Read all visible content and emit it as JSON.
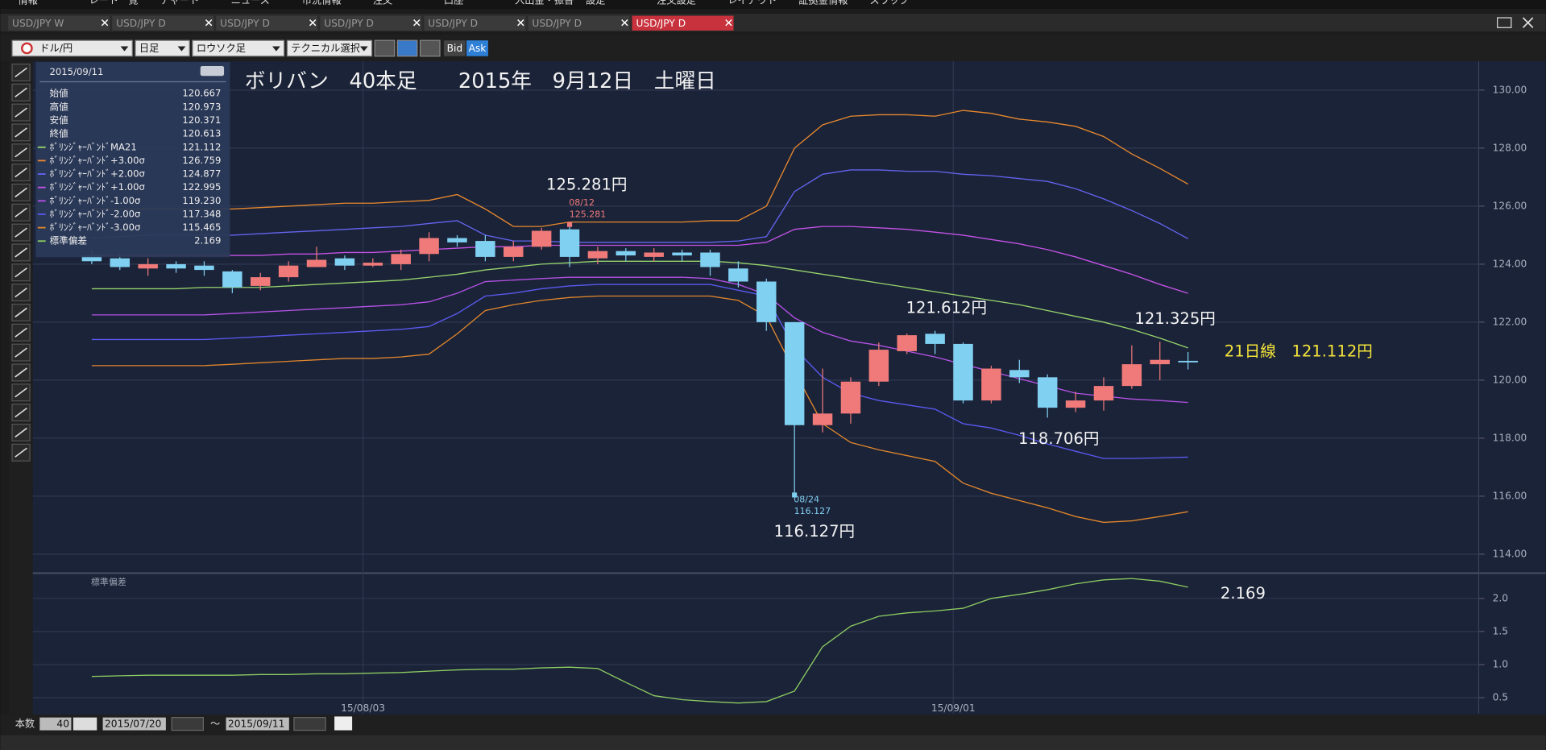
{
  "menu": [
    "情報",
    "レート一覧",
    "チャート",
    "ニュース",
    "市況情報",
    "注文",
    "口座",
    "入出金・振替",
    "設定",
    "注文設定",
    "レイアウト",
    "証拠金情報",
    "スワップ"
  ],
  "tabs": [
    "USD/JPY W",
    "USD/JPY D",
    "USD/JPY D",
    "USD/JPY D",
    "USD/JPY D",
    "USD/JPY D",
    "USD/JPY D"
  ],
  "toolbar": {
    "pair": "ドル/円",
    "period": "日足",
    "chart_kind": "ロウソク足",
    "technical": "テクニカル選択",
    "bid": "Bid",
    "ask": "Ask"
  },
  "info_panel": {
    "date": "2015/09/11",
    "rows": [
      {
        "label": "始値",
        "value": "120.667"
      },
      {
        "label": "高値",
        "value": "120.973"
      },
      {
        "label": "安値",
        "value": "120.371"
      },
      {
        "label": "終値",
        "value": "120.613"
      },
      {
        "label": "ﾎﾞﾘﾝｼﾞｬｰﾊﾞﾝﾄﾞMA21",
        "value": "121.112"
      },
      {
        "label": "ﾎﾞﾘﾝｼﾞｬｰﾊﾞﾝﾄﾞ+3.00σ",
        "value": "126.759"
      },
      {
        "label": "ﾎﾞﾘﾝｼﾞｬｰﾊﾞﾝﾄﾞ+2.00σ",
        "value": "124.877"
      },
      {
        "label": "ﾎﾞﾘﾝｼﾞｬｰﾊﾞﾝﾄﾞ+1.00σ",
        "value": "122.995"
      },
      {
        "label": "ﾎﾞﾘﾝｼﾞｬｰﾊﾞﾝﾄﾞ-1.00σ",
        "value": "119.230"
      },
      {
        "label": "ﾎﾞﾘﾝｼﾞｬｰﾊﾞﾝﾄﾞ-2.00σ",
        "value": "117.348"
      },
      {
        "label": "ﾎﾞﾘﾝｼﾞｬｰﾊﾞﾝﾄﾞ-3.00σ",
        "value": "115.465"
      },
      {
        "label": "標準偏差",
        "value": "2.169"
      }
    ]
  },
  "footer": {
    "count_label": "本数",
    "count": 40,
    "from": "2015/07/20",
    "tilde": "～",
    "to": "2015/09/11"
  },
  "chart_data": [
    {
      "type": "candlestick",
      "title": "ボリバン　40本足　　2015年　9月12日　土曜日",
      "categories": [
        null,
        null,
        null,
        null,
        null,
        null,
        null,
        null,
        null,
        null,
        "15/08/03",
        null,
        null,
        null,
        null,
        null,
        null,
        null,
        null,
        null,
        null,
        null,
        null,
        null,
        null,
        null,
        null,
        null,
        null,
        null,
        null,
        "15/09/01",
        null,
        null,
        null,
        null,
        null,
        null,
        null,
        null
      ],
      "open": [
        124.3,
        124.2,
        123.85,
        124.0,
        123.95,
        123.75,
        123.25,
        123.55,
        123.9,
        124.2,
        123.95,
        124.0,
        124.35,
        124.9,
        124.8,
        124.25,
        124.6,
        125.2,
        124.2,
        124.45,
        124.25,
        124.4,
        124.4,
        123.85,
        123.4,
        122.0,
        118.45,
        118.85,
        119.95,
        121.0,
        121.6,
        121.25,
        119.3,
        120.35,
        120.1,
        119.05,
        119.3,
        119.8,
        120.55,
        120.667
      ],
      "high": [
        124.5,
        124.4,
        124.2,
        124.1,
        124.1,
        123.8,
        123.7,
        124.1,
        124.6,
        124.3,
        124.2,
        124.5,
        125.1,
        125.0,
        125.0,
        124.8,
        125.25,
        125.281,
        124.6,
        124.55,
        124.55,
        124.5,
        124.5,
        124.1,
        123.5,
        122.0,
        120.4,
        120.1,
        121.3,
        121.612,
        121.7,
        121.3,
        120.5,
        120.7,
        120.2,
        119.6,
        120.1,
        121.2,
        121.325,
        120.973
      ],
      "low": [
        124.0,
        123.8,
        123.6,
        123.7,
        123.6,
        123.0,
        123.1,
        123.4,
        123.9,
        123.8,
        123.9,
        123.8,
        124.1,
        124.6,
        124.1,
        124.1,
        124.5,
        123.9,
        124.0,
        124.1,
        124.1,
        124.1,
        123.6,
        123.2,
        121.7,
        116.127,
        118.2,
        118.5,
        119.8,
        120.9,
        120.9,
        119.2,
        119.2,
        119.9,
        118.706,
        118.9,
        118.95,
        119.7,
        120.0,
        120.371
      ],
      "close": [
        124.1,
        123.9,
        124.0,
        123.85,
        123.8,
        123.2,
        123.55,
        123.95,
        124.15,
        123.95,
        124.05,
        124.35,
        124.9,
        124.75,
        124.25,
        124.6,
        125.15,
        124.25,
        124.45,
        124.3,
        124.4,
        124.3,
        123.9,
        123.4,
        122.0,
        118.45,
        118.85,
        119.95,
        121.05,
        121.55,
        121.25,
        119.3,
        120.4,
        120.1,
        119.05,
        119.3,
        119.8,
        120.55,
        120.7,
        120.613
      ],
      "up_color": "#f07a7a",
      "down_color": "#80d0f2",
      "series": [
        {
          "color": "#96d46c",
          "values": [
            123.15,
            123.15,
            123.15,
            123.15,
            123.2,
            123.2,
            123.2,
            123.25,
            123.3,
            123.35,
            123.4,
            123.45,
            123.55,
            123.65,
            123.8,
            123.9,
            124.0,
            124.05,
            124.1,
            124.1,
            124.1,
            124.1,
            124.1,
            124.05,
            123.95,
            123.8,
            123.65,
            123.5,
            123.35,
            123.2,
            123.05,
            122.9,
            122.75,
            122.6,
            122.4,
            122.2,
            122.0,
            121.75,
            121.45,
            121.112
          ]
        },
        {
          "color": "#e8892e",
          "values": [
            125.9,
            125.9,
            125.9,
            125.9,
            125.9,
            125.9,
            125.95,
            126.0,
            126.05,
            126.1,
            126.1,
            126.15,
            126.2,
            126.4,
            125.9,
            125.3,
            125.3,
            125.45,
            125.45,
            125.45,
            125.45,
            125.45,
            125.5,
            125.5,
            126.0,
            128.0,
            128.8,
            129.1,
            129.15,
            129.15,
            129.1,
            129.3,
            129.2,
            129.0,
            128.9,
            128.75,
            128.4,
            127.8,
            127.3,
            126.759
          ]
        },
        {
          "color": "#6464f0",
          "values": [
            124.9,
            124.95,
            125.0,
            125.0,
            125.0,
            125.0,
            125.05,
            125.1,
            125.15,
            125.2,
            125.25,
            125.3,
            125.4,
            125.5,
            125.0,
            124.8,
            124.8,
            124.75,
            124.75,
            124.75,
            124.75,
            124.75,
            124.75,
            124.8,
            124.95,
            126.5,
            127.1,
            127.25,
            127.25,
            127.2,
            127.2,
            127.1,
            127.05,
            126.95,
            126.85,
            126.6,
            126.25,
            125.85,
            125.4,
            124.877
          ]
        },
        {
          "color": "#c452e6",
          "values": [
            124.3,
            124.3,
            124.3,
            124.3,
            124.3,
            124.3,
            124.3,
            124.35,
            124.35,
            124.4,
            124.4,
            124.45,
            124.5,
            124.55,
            124.6,
            124.6,
            124.65,
            124.65,
            124.65,
            124.65,
            124.65,
            124.65,
            124.65,
            124.65,
            124.75,
            125.2,
            125.3,
            125.3,
            125.25,
            125.2,
            125.1,
            125.0,
            124.85,
            124.7,
            124.5,
            124.25,
            123.95,
            123.65,
            123.3,
            122.995
          ]
        },
        {
          "color": "#b452e6",
          "values": [
            122.25,
            122.25,
            122.25,
            122.25,
            122.25,
            122.3,
            122.35,
            122.4,
            122.45,
            122.5,
            122.55,
            122.6,
            122.7,
            123.0,
            123.4,
            123.45,
            123.5,
            123.55,
            123.55,
            123.55,
            123.55,
            123.55,
            123.5,
            123.3,
            122.95,
            122.15,
            121.65,
            121.35,
            121.2,
            121.0,
            120.8,
            120.55,
            120.3,
            120.05,
            119.8,
            119.55,
            119.45,
            119.35,
            119.3,
            119.23
          ]
        },
        {
          "color": "#5a5af0",
          "values": [
            121.4,
            121.4,
            121.4,
            121.4,
            121.4,
            121.45,
            121.5,
            121.55,
            121.6,
            121.65,
            121.7,
            121.75,
            121.85,
            122.3,
            122.9,
            123.0,
            123.15,
            123.25,
            123.3,
            123.3,
            123.3,
            123.3,
            123.3,
            123.1,
            122.9,
            121.1,
            120.1,
            119.55,
            119.3,
            119.15,
            119.0,
            118.5,
            118.35,
            118.1,
            117.8,
            117.55,
            117.3,
            117.3,
            117.32,
            117.348
          ]
        },
        {
          "color": "#e0862c",
          "values": [
            120.5,
            120.5,
            120.5,
            120.5,
            120.5,
            120.55,
            120.6,
            120.65,
            120.7,
            120.75,
            120.75,
            120.8,
            120.9,
            121.6,
            122.4,
            122.6,
            122.75,
            122.85,
            122.9,
            122.9,
            122.9,
            122.9,
            122.9,
            122.75,
            122.2,
            120.3,
            118.5,
            117.85,
            117.6,
            117.4,
            117.2,
            116.45,
            116.1,
            115.85,
            115.6,
            115.3,
            115.1,
            115.15,
            115.3,
            115.465
          ]
        }
      ],
      "ylim": [
        113.4,
        131
      ],
      "yticks": [
        {
          "value": 130,
          "label": "130.00"
        },
        {
          "value": 128,
          "label": "128.00"
        },
        {
          "value": 126,
          "label": "126.00"
        },
        {
          "value": 124,
          "label": "124.00"
        },
        {
          "value": 122,
          "label": "122.00"
        },
        {
          "value": 120,
          "label": "120.00"
        },
        {
          "value": 118,
          "label": "118.00"
        },
        {
          "value": 116,
          "label": "116.00"
        },
        {
          "value": 114,
          "label": "114.00"
        }
      ],
      "grid": true,
      "annotations": [
        {
          "text": "125.281円"
        },
        {
          "text": "08/12"
        },
        {
          "text": "125.281"
        },
        {
          "text": "116.127円"
        },
        {
          "text": "08/24"
        },
        {
          "text": "116.127"
        },
        {
          "text": "121.612円"
        },
        {
          "text": "121.325円"
        },
        {
          "text": "118.706円"
        },
        {
          "text": "21日線　121.112円"
        }
      ]
    },
    {
      "type": "line",
      "title": "標準偏差",
      "color": "#8ccc62",
      "values": [
        0.82,
        0.83,
        0.84,
        0.84,
        0.84,
        0.84,
        0.85,
        0.85,
        0.86,
        0.86,
        0.87,
        0.88,
        0.9,
        0.92,
        0.93,
        0.93,
        0.95,
        0.96,
        0.94,
        0.73,
        0.53,
        0.47,
        0.44,
        0.42,
        0.44,
        0.6,
        1.27,
        1.58,
        1.73,
        1.78,
        1.81,
        1.85,
        2.0,
        2.06,
        2.13,
        2.22,
        2.28,
        2.3,
        2.26,
        2.169
      ],
      "ylim": [
        0.26,
        2.36
      ],
      "yticks": [
        {
          "value": 2,
          "label": "2.0"
        },
        1.5,
        {
          "value": 1,
          "label": "1.0"
        },
        0.5
      ],
      "grid": true,
      "annotations": [
        {
          "text": "2.169"
        }
      ]
    }
  ]
}
